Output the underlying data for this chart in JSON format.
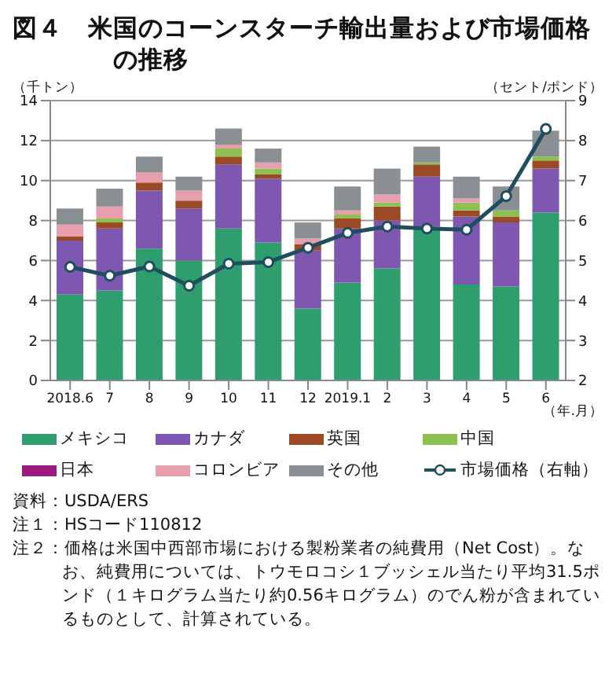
{
  "chart_data": {
    "type": "bar",
    "title": "図４　米国のコーンスターチ輸出量および市場価格の推移",
    "ylabel": "（千トン）",
    "y2label": "（セント/ポンド）",
    "xlabel": "（年.月）",
    "categories": [
      "2018.6",
      "7",
      "8",
      "9",
      "10",
      "11",
      "12",
      "2019.1",
      "2",
      "3",
      "4",
      "5",
      "6"
    ],
    "stacked": true,
    "grid": "y",
    "legend": "bottom",
    "marker": "circle",
    "ylim": [
      0,
      14
    ],
    "yticks": [
      0,
      2,
      4,
      6,
      8,
      10,
      12,
      14
    ],
    "y2lim": [
      2,
      9
    ],
    "y2ticks": [
      2,
      3,
      4,
      5,
      6,
      7,
      8,
      9
    ],
    "series": [
      {
        "name": "メキシコ",
        "color": "#2e9e6e",
        "values": [
          4.3,
          4.5,
          6.6,
          6.0,
          7.6,
          6.9,
          3.6,
          4.9,
          5.6,
          7.7,
          4.8,
          4.7,
          8.4
        ]
      },
      {
        "name": "カナダ",
        "color": "#7e57b0",
        "values": [
          2.7,
          3.1,
          2.9,
          2.6,
          3.2,
          3.2,
          2.9,
          2.7,
          2.4,
          2.5,
          3.4,
          3.2,
          2.2
        ]
      },
      {
        "name": "英国",
        "color": "#9b4a25",
        "values": [
          0.2,
          0.3,
          0.4,
          0.4,
          0.4,
          0.2,
          0.3,
          0.5,
          0.7,
          0.6,
          0.3,
          0.3,
          0.4
        ]
      },
      {
        "name": "中国",
        "color": "#8cc152",
        "values": [
          0,
          0.2,
          0,
          0,
          0.4,
          0.3,
          0,
          0.2,
          0.2,
          0.1,
          0.4,
          0.3,
          0.2
        ]
      },
      {
        "name": "日本",
        "color": "#9b1b7e",
        "values": [
          0,
          0,
          0,
          0,
          0,
          0,
          0,
          0,
          0,
          0,
          0,
          0,
          0
        ]
      },
      {
        "name": "コロンビア",
        "color": "#e79fae",
        "values": [
          0.6,
          0.6,
          0.5,
          0.5,
          0.2,
          0.3,
          0.3,
          0.2,
          0.4,
          0,
          0.2,
          0,
          0
        ]
      },
      {
        "name": "その他",
        "color": "#8a8f94",
        "values": [
          0.8,
          0.9,
          0.8,
          0.7,
          0.8,
          0.7,
          0.8,
          1.2,
          1.3,
          0.8,
          1.1,
          1.2,
          1.3
        ]
      },
      {
        "name": "市場価格（右軸）",
        "type": "line",
        "axis": "y2",
        "color": "#1f4e5f",
        "values": [
          4.84,
          4.62,
          4.85,
          4.37,
          4.92,
          4.96,
          5.32,
          5.69,
          5.85,
          5.8,
          5.77,
          6.61,
          8.29
        ]
      }
    ],
    "annotations": [
      "資料：USDA/ERS",
      "注１：HSコード110812",
      "注２：価格は米国中西部市場における製粉業者の純費用（Net Cost）。なお、純費用については、トウモロコシ１ブッシェル当たり平均31.5ポンド（１キログラム当たり約0.56キログラム）のでん粉が含まれているものとして、計算されている。"
    ]
  }
}
